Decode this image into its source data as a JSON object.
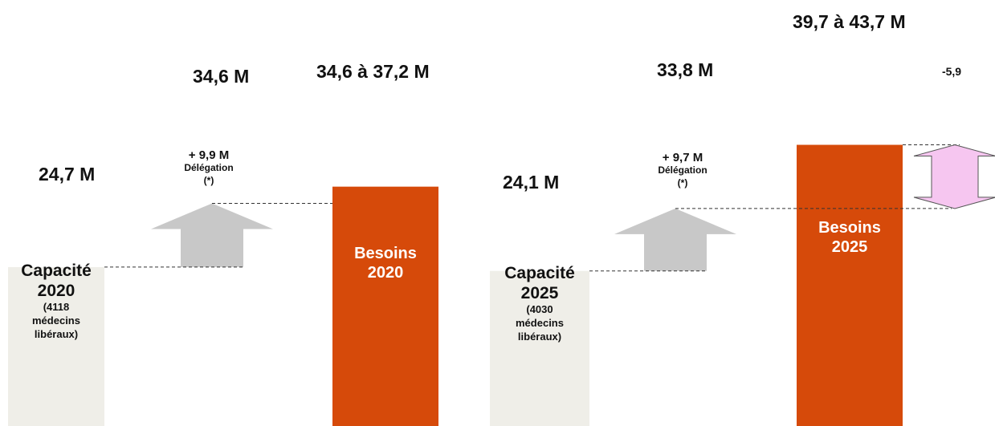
{
  "chart_data": {
    "type": "bar",
    "title": "",
    "colors": {
      "capacity": "#efeee8",
      "needs": "#d64a0a",
      "delegation_arrow": "#c8c8c8",
      "gap_arrow": "#f6c6f0"
    },
    "groups": [
      {
        "capacity": {
          "value": 24.7,
          "value_label": "24,7 M",
          "title_line1": "Capacité",
          "title_line2": "2020",
          "sub_line1": "(4118",
          "sub_line2": "médecins",
          "sub_line3": "libéraux)"
        },
        "delegation": {
          "value": 9.9,
          "value_label": "+ 9,9 M",
          "label": "Délégation",
          "note": "(*)",
          "total": 34.6,
          "total_label": "34,6 M"
        },
        "needs": {
          "value_low": 34.6,
          "value_high": 37.2,
          "value_label": "34,6 à 37,2 M",
          "title_line1": "Besoins",
          "title_line2": "2020"
        }
      },
      {
        "capacity": {
          "value": 24.1,
          "value_label": "24,1 M",
          "title_line1": "Capacité",
          "title_line2": "2025",
          "sub_line1": "(4030",
          "sub_line2": "médecins",
          "sub_line3": "libéraux)"
        },
        "delegation": {
          "value": 9.7,
          "value_label": "+ 9,7 M",
          "label": "Délégation",
          "note": "(*)",
          "total": 33.8,
          "total_label": "33,8 M"
        },
        "needs": {
          "value_low": 39.7,
          "value_high": 43.7,
          "value_label": "39,7 à 43,7 M",
          "title_line1": "Besoins",
          "title_line2": "2025"
        },
        "gap": {
          "value": -5.9,
          "label": "-5,9"
        }
      }
    ]
  }
}
